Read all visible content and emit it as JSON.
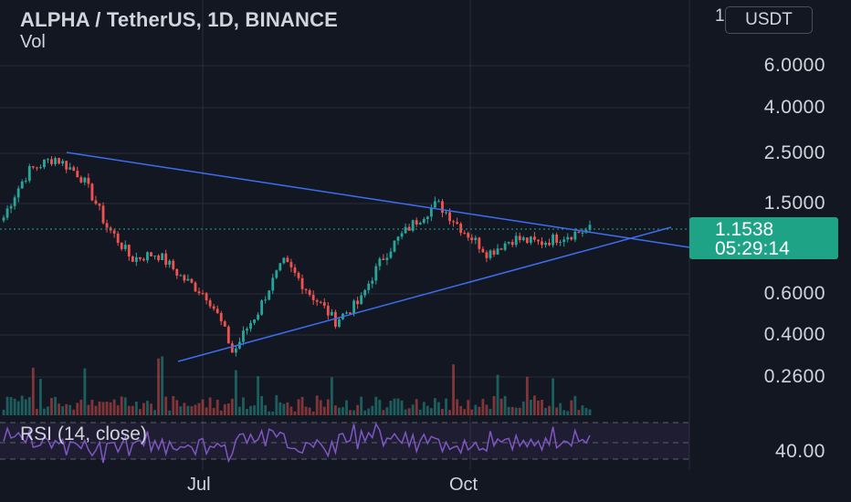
{
  "header": {
    "title": "ALPHA / TetherUS, 1D, BINANCE",
    "volume_label": "Vol",
    "unit_button": "USDT",
    "unit_edge_glyph": "1"
  },
  "price_badge": {
    "price": "1.1538",
    "countdown": "05:29:14",
    "color": "#1fa386"
  },
  "rsi": {
    "label": "RSI (14, close)",
    "level_label": "40.00",
    "line_color": "#7e57c2"
  },
  "colors": {
    "background": "#131722",
    "up": "#26a69a",
    "down": "#ef5350",
    "trendline": "#2962ff"
  },
  "chart_data": {
    "type": "candlestick",
    "scale": "log",
    "y_ticks": [
      "6.0000",
      "4.0000",
      "2.5000",
      "1.5000",
      "0.6000",
      "0.4000",
      "0.2600"
    ],
    "x_ticks": [
      "Jul",
      "Oct"
    ],
    "last_price": 1.1538,
    "series": [
      {
        "name": "ALPHA / TetherUS",
        "close_path_approx": [
          1.3,
          2.1,
          2.4,
          2.0,
          1.2,
          0.85,
          0.9,
          0.7,
          0.58,
          0.32,
          0.5,
          0.82,
          0.6,
          0.45,
          0.55,
          0.9,
          1.2,
          1.5,
          1.15,
          0.9,
          1.05,
          1.0,
          1.08,
          1.15
        ]
      }
    ],
    "trendlines": [
      {
        "name": "upper",
        "from": [
          2.55,
          "early"
        ],
        "to": [
          1.05,
          "late"
        ]
      },
      {
        "name": "lower",
        "from": [
          0.3,
          "late-jun"
        ],
        "to": [
          1.15,
          "late"
        ]
      }
    ],
    "grid": true
  }
}
